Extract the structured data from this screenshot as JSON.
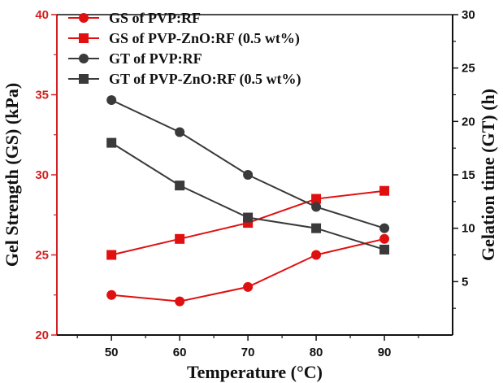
{
  "chart_data": {
    "type": "line",
    "x": [
      50,
      60,
      70,
      80,
      90
    ],
    "xlabel": "Temperature (°C)",
    "ylabel_left": "Gel Strength (GS) (kPa)",
    "ylabel_right": "Gelation time (GT) (h)",
    "xlim": [
      42,
      100
    ],
    "ylim_left": [
      20,
      40
    ],
    "ylim_right": [
      0,
      30
    ],
    "xticks": [
      "50",
      "60",
      "70",
      "80",
      "90"
    ],
    "yticks_left": [
      "20",
      "25",
      "30",
      "35",
      "40"
    ],
    "yticks_right": [
      "5",
      "10",
      "15",
      "20",
      "25",
      "30"
    ],
    "colors": {
      "red_axis": "#d21f1f",
      "gs_series": "#e01010",
      "gt_series": "#3a3a3a",
      "axis": "#111111"
    },
    "series": [
      {
        "name": "GS of PVP:RF",
        "axis": "left",
        "marker": "circle",
        "color": "#e01010",
        "values": [
          22.5,
          22.1,
          23.0,
          25.0,
          26.0
        ]
      },
      {
        "name": "GS of PVP-ZnO:RF (0.5 wt%)",
        "axis": "left",
        "marker": "square",
        "color": "#e01010",
        "values": [
          25.0,
          26.0,
          27.0,
          28.5,
          29.0
        ]
      },
      {
        "name": "GT of PVP:RF",
        "axis": "right",
        "marker": "circle",
        "color": "#3a3a3a",
        "values": [
          22.0,
          19.0,
          15.0,
          12.0,
          10.0
        ]
      },
      {
        "name": "GT of PVP-ZnO:RF (0.5 wt%)",
        "axis": "right",
        "marker": "square",
        "color": "#3a3a3a",
        "values": [
          18.0,
          14.0,
          11.0,
          10.0,
          8.0
        ]
      }
    ],
    "legend_position": "top-left",
    "grid": false
  }
}
